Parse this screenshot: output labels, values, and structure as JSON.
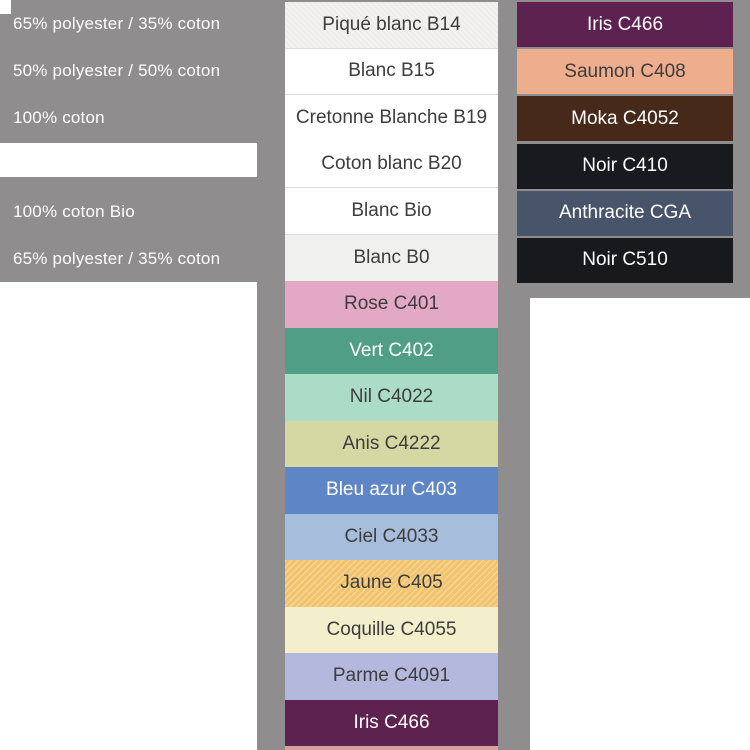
{
  "colors": {
    "panel_gray": "#8f8d8d",
    "dark_text": "#3e3d3d",
    "light_text": "#ffffff",
    "divider": "#dedcda"
  },
  "left_panel": {
    "rows": [
      {
        "label": "65% polyester / 35% coton"
      },
      {
        "label": "50% polyester / 50% coton"
      },
      {
        "label": "100% coton"
      },
      {
        "label": ""
      },
      {
        "label": "100% coton Bio"
      },
      {
        "label": "65% polyester / 35% coton"
      }
    ]
  },
  "middle_column": {
    "rows": [
      {
        "label": "Piqué blanc B14",
        "bg": "#f3f2f0",
        "fg": "#3e3d3d"
      },
      {
        "label": "Blanc B15",
        "bg": "#ffffff",
        "fg": "#3e3d3d"
      },
      {
        "label": "Cretonne Blanche B19",
        "bg": "#ffffff",
        "fg": "#3e3d3d"
      },
      {
        "label": "Coton blanc B20",
        "bg": "#ffffff",
        "fg": "#3e3d3d"
      },
      {
        "label": "Blanc Bio",
        "bg": "#ffffff",
        "fg": "#3e3d3d"
      },
      {
        "label": "Blanc B0",
        "bg": "#f0f1ef",
        "fg": "#3e3d3d"
      },
      {
        "label": "Rose C401",
        "bg": "#e3a8c6",
        "fg": "#3e3d3d"
      },
      {
        "label": "Vert C402",
        "bg": "#4f9e85",
        "fg": "#ffffff"
      },
      {
        "label": "Nil C4022",
        "bg": "#aadcc7",
        "fg": "#3e3d3d"
      },
      {
        "label": "Anis C4222",
        "bg": "#d5d8a2",
        "fg": "#3e3d3d"
      },
      {
        "label": "Bleu azur C403",
        "bg": "#5e86c6",
        "fg": "#ffffff"
      },
      {
        "label": "Ciel C4033",
        "bg": "#a6bedb",
        "fg": "#3e3d3d"
      },
      {
        "label": "Jaune C405",
        "bg": "#f2c36d",
        "fg": "#3e3d3d"
      },
      {
        "label": "Coquille C4055",
        "bg": "#f3eecb",
        "fg": "#3e3d3d"
      },
      {
        "label": "Parme C4091",
        "bg": "#b5b8dd",
        "fg": "#3e3d3d"
      },
      {
        "label": "Iris C466",
        "bg": "#5e2251",
        "fg": "#ffffff"
      }
    ],
    "partial_next_swatch_color": "#d6a29d"
  },
  "right_panel": {
    "rows": [
      {
        "label": "Iris C466",
        "bg": "#5e2251",
        "fg": "#ffffff"
      },
      {
        "label": "Saumon C408",
        "bg": "#eeae8e",
        "fg": "#3e3d3d"
      },
      {
        "label": "Moka C4052",
        "bg": "#47291a",
        "fg": "#ffffff"
      },
      {
        "label": "Noir C410",
        "bg": "#181a20",
        "fg": "#ffffff"
      },
      {
        "label": "Anthracite CGA",
        "bg": "#47546a",
        "fg": "#ffffff"
      },
      {
        "label": "Noir C510",
        "bg": "#17191d",
        "fg": "#ffffff"
      }
    ]
  }
}
